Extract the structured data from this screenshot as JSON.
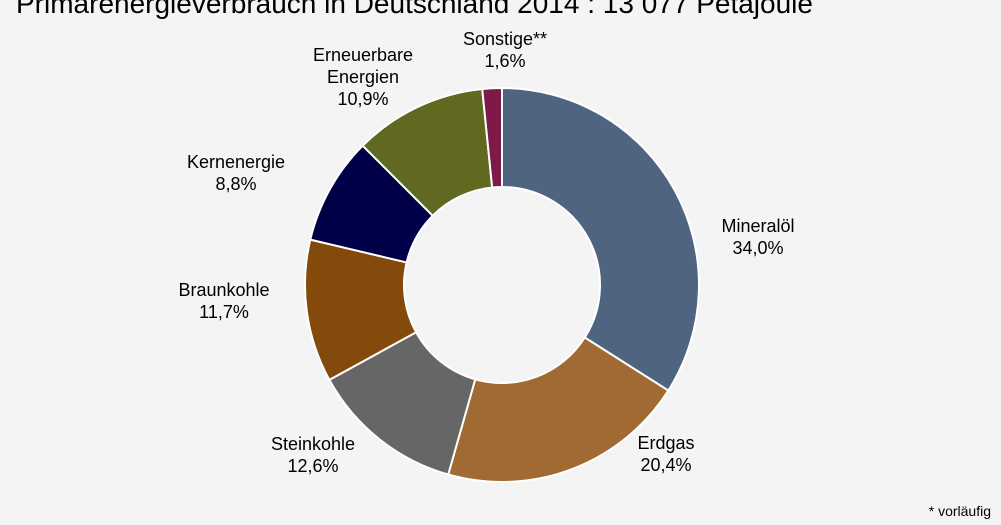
{
  "chart_data": {
    "type": "pie",
    "title": "Primärenergieverbrauch in Deutschland 2014 : 13 077 Petajoule",
    "categories": [
      "Mineralöl",
      "Erdgas",
      "Steinkohle",
      "Braunkohle",
      "Kernenergie",
      "Erneuerbare Energien",
      "Sonstige**"
    ],
    "label_lines": [
      [
        "Mineralöl"
      ],
      [
        "Erdgas"
      ],
      [
        "Steinkohle"
      ],
      [
        "Braunkohle"
      ],
      [
        "Kernenergie"
      ],
      [
        "Erneuerbare",
        "Energien"
      ],
      [
        "Sonstige**"
      ]
    ],
    "values": [
      34.0,
      20.4,
      12.6,
      11.7,
      8.8,
      10.9,
      1.6
    ],
    "value_labels": [
      "34,0%",
      "20,4%",
      "12,6%",
      "11,7%",
      "8,8%",
      "10,9%",
      "1,6%"
    ],
    "colors": [
      "#4f6481",
      "#a06a32",
      "#666666",
      "#834a0c",
      "#000048",
      "#60691f",
      "#7d1a4a"
    ],
    "style": "donut",
    "legend": "none"
  },
  "footnote": "* vorläufig"
}
